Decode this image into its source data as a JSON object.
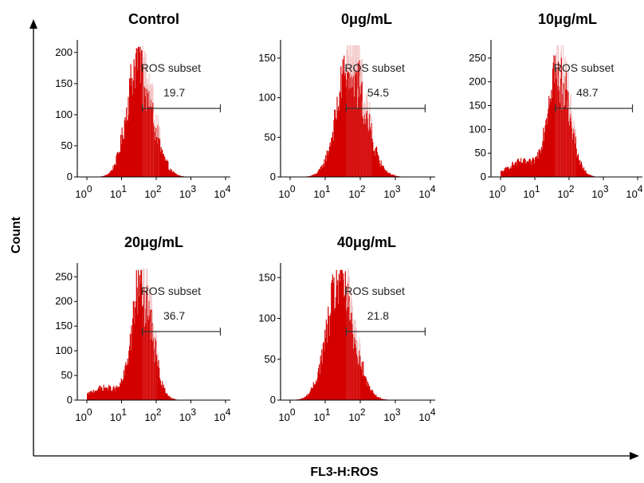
{
  "figure": {
    "xlabel": "FL3-H:ROS",
    "ylabel": "Count",
    "colors": {
      "fill": "#d40000",
      "gate_shade": "#f2c4c4",
      "axis": "#000000"
    }
  },
  "chart_data": [
    {
      "type": "area",
      "title": "Control",
      "x_scale": "log",
      "xlim": [
        1,
        10000
      ],
      "x_ticks": [
        "10^0",
        "10^1",
        "10^2",
        "10^3",
        "10^4"
      ],
      "ylim": [
        0,
        210
      ],
      "y_ticks": [
        0,
        50,
        100,
        150,
        200
      ],
      "histogram": {
        "log_peak": 1.5,
        "peak_count": 200,
        "sigma_left": 0.33,
        "sigma_right": 0.4,
        "left_tail": 0
      },
      "gate": {
        "label": "ROS subset",
        "value": "19.7",
        "log_start": 1.6,
        "log_end": 3.85
      }
    },
    {
      "type": "area",
      "title": "0μg/mL",
      "x_scale": "log",
      "xlim": [
        1,
        10000
      ],
      "x_ticks": [
        "10^0",
        "10^1",
        "10^2",
        "10^3",
        "10^4"
      ],
      "ylim": [
        0,
        165
      ],
      "y_ticks": [
        0,
        50,
        100,
        150
      ],
      "histogram": {
        "log_peak": 1.75,
        "peak_count": 160,
        "sigma_left": 0.38,
        "sigma_right": 0.42,
        "left_tail": 0
      },
      "gate": {
        "label": "ROS subset",
        "value": "54.5",
        "log_start": 1.6,
        "log_end": 3.85
      }
    },
    {
      "type": "area",
      "title": "10μg/mL",
      "x_scale": "log",
      "xlim": [
        1,
        10000
      ],
      "x_ticks": [
        "10^0",
        "10^1",
        "10^2",
        "10^3",
        "10^4"
      ],
      "ylim": [
        0,
        275
      ],
      "y_ticks": [
        0,
        50,
        100,
        150,
        200,
        250
      ],
      "histogram": {
        "log_peak": 1.7,
        "peak_count": 270,
        "sigma_left": 0.3,
        "sigma_right": 0.32,
        "left_tail": 0.12
      },
      "gate": {
        "label": "ROS subset",
        "value": "48.7",
        "log_start": 1.6,
        "log_end": 3.85
      }
    },
    {
      "type": "area",
      "title": "20μg/mL",
      "x_scale": "log",
      "xlim": [
        1,
        10000
      ],
      "x_ticks": [
        "10^0",
        "10^1",
        "10^2",
        "10^3",
        "10^4"
      ],
      "ylim": [
        0,
        265
      ],
      "y_ticks": [
        0,
        50,
        100,
        150,
        200,
        250
      ],
      "histogram": {
        "log_peak": 1.6,
        "peak_count": 260,
        "sigma_left": 0.28,
        "sigma_right": 0.3,
        "left_tail": 0.1
      },
      "gate": {
        "label": "ROS subset",
        "value": "36.7",
        "log_start": 1.6,
        "log_end": 3.85
      }
    },
    {
      "type": "area",
      "title": "40μg/mL",
      "x_scale": "log",
      "xlim": [
        1,
        10000
      ],
      "x_ticks": [
        "10^0",
        "10^1",
        "10^2",
        "10^3",
        "10^4"
      ],
      "ylim": [
        0,
        160
      ],
      "y_ticks": [
        0,
        50,
        100,
        150
      ],
      "histogram": {
        "log_peak": 1.45,
        "peak_count": 155,
        "sigma_left": 0.38,
        "sigma_right": 0.4,
        "left_tail": 0
      },
      "gate": {
        "label": "ROS subset",
        "value": "21.8",
        "log_start": 1.6,
        "log_end": 3.85
      }
    }
  ]
}
